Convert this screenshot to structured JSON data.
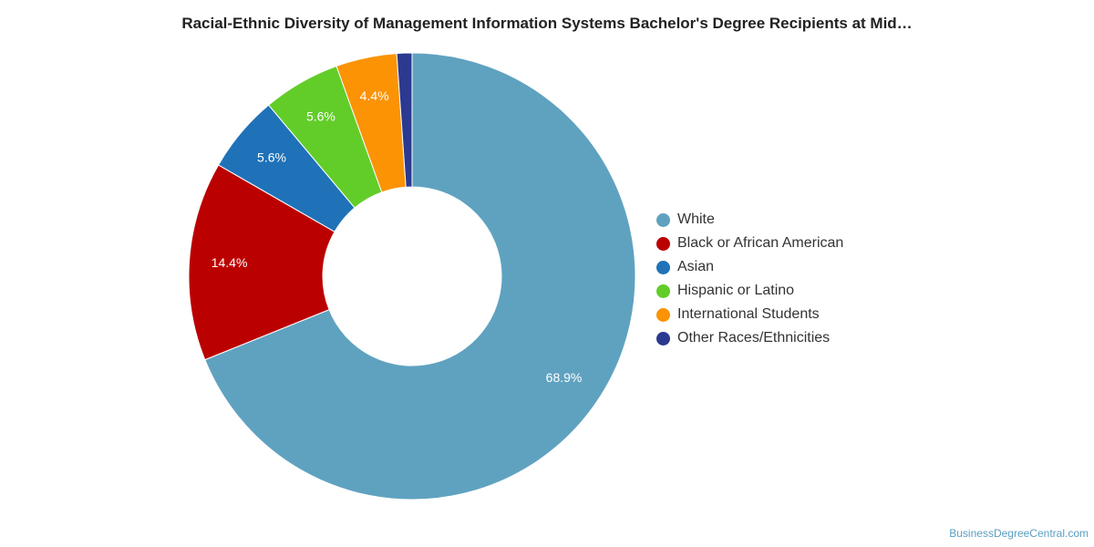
{
  "chart_data": {
    "type": "pie",
    "title": "Racial-Ethnic Diversity of Management Information Systems Bachelor's Degree Recipients at Mid…",
    "donut": true,
    "categories": [
      "White",
      "Black or African American",
      "Asian",
      "Hispanic or Latino",
      "International Students",
      "Other Races/Ethnicities"
    ],
    "values": [
      68.9,
      14.4,
      5.6,
      5.6,
      4.4,
      1.1
    ],
    "labels": [
      "68.9%",
      "14.4%",
      "5.6%",
      "5.6%",
      "4.4%",
      ""
    ],
    "colors": [
      "#5fa2c0",
      "#bb0000",
      "#1f72b8",
      "#62cd29",
      "#fb9304",
      "#2b3990"
    ],
    "legend_position": "right"
  },
  "source": "BusinessDegreeCentral.com"
}
